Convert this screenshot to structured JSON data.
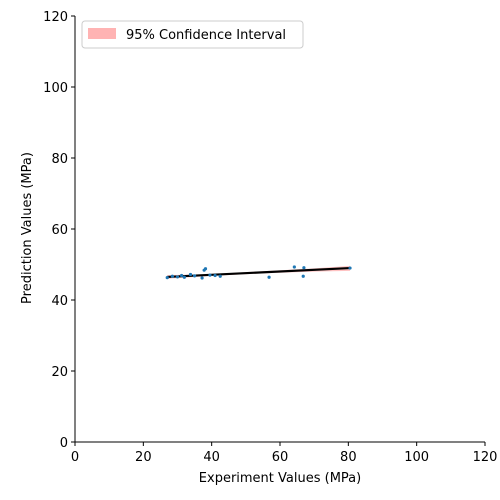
{
  "chart_data": {
    "type": "scatter",
    "title": "",
    "xlabel": "Experiment Values (MPa)",
    "ylabel": "Prediction Values (MPa)",
    "xlim": [
      0,
      120
    ],
    "ylim": [
      0,
      120
    ],
    "xticks": [
      0,
      20,
      40,
      60,
      80,
      100,
      120
    ],
    "yticks": [
      0,
      20,
      40,
      60,
      80,
      100,
      120
    ],
    "grid": false,
    "legend": {
      "placement": "top-left",
      "entries": [
        "95% Confidence Interval"
      ]
    },
    "colors": {
      "points": "#1f77b4",
      "fit_line": "#000000",
      "ci_band": "#ff9999"
    },
    "points": [
      {
        "x": 27.0,
        "y": 46.3
      },
      {
        "x": 28.5,
        "y": 46.7
      },
      {
        "x": 30.0,
        "y": 46.5
      },
      {
        "x": 31.2,
        "y": 46.9
      },
      {
        "x": 32.0,
        "y": 46.4
      },
      {
        "x": 33.8,
        "y": 47.2
      },
      {
        "x": 35.0,
        "y": 46.8
      },
      {
        "x": 37.2,
        "y": 46.2
      },
      {
        "x": 37.8,
        "y": 48.4
      },
      {
        "x": 38.2,
        "y": 48.8
      },
      {
        "x": 39.5,
        "y": 47.0
      },
      {
        "x": 41.0,
        "y": 46.9
      },
      {
        "x": 42.5,
        "y": 46.7
      },
      {
        "x": 56.8,
        "y": 46.4
      },
      {
        "x": 64.2,
        "y": 49.3
      },
      {
        "x": 66.8,
        "y": 46.7
      },
      {
        "x": 67.0,
        "y": 49.1
      },
      {
        "x": 80.5,
        "y": 49.0
      }
    ],
    "fit_line": {
      "x": [
        27,
        80.5
      ],
      "y": [
        46.5,
        49.0
      ]
    },
    "confidence_interval": {
      "x": [
        27,
        40,
        55,
        70,
        80.5
      ],
      "lower": [
        46.0,
        46.8,
        47.5,
        48.0,
        48.2
      ],
      "upper": [
        47.0,
        47.3,
        48.1,
        48.9,
        49.6
      ]
    }
  }
}
